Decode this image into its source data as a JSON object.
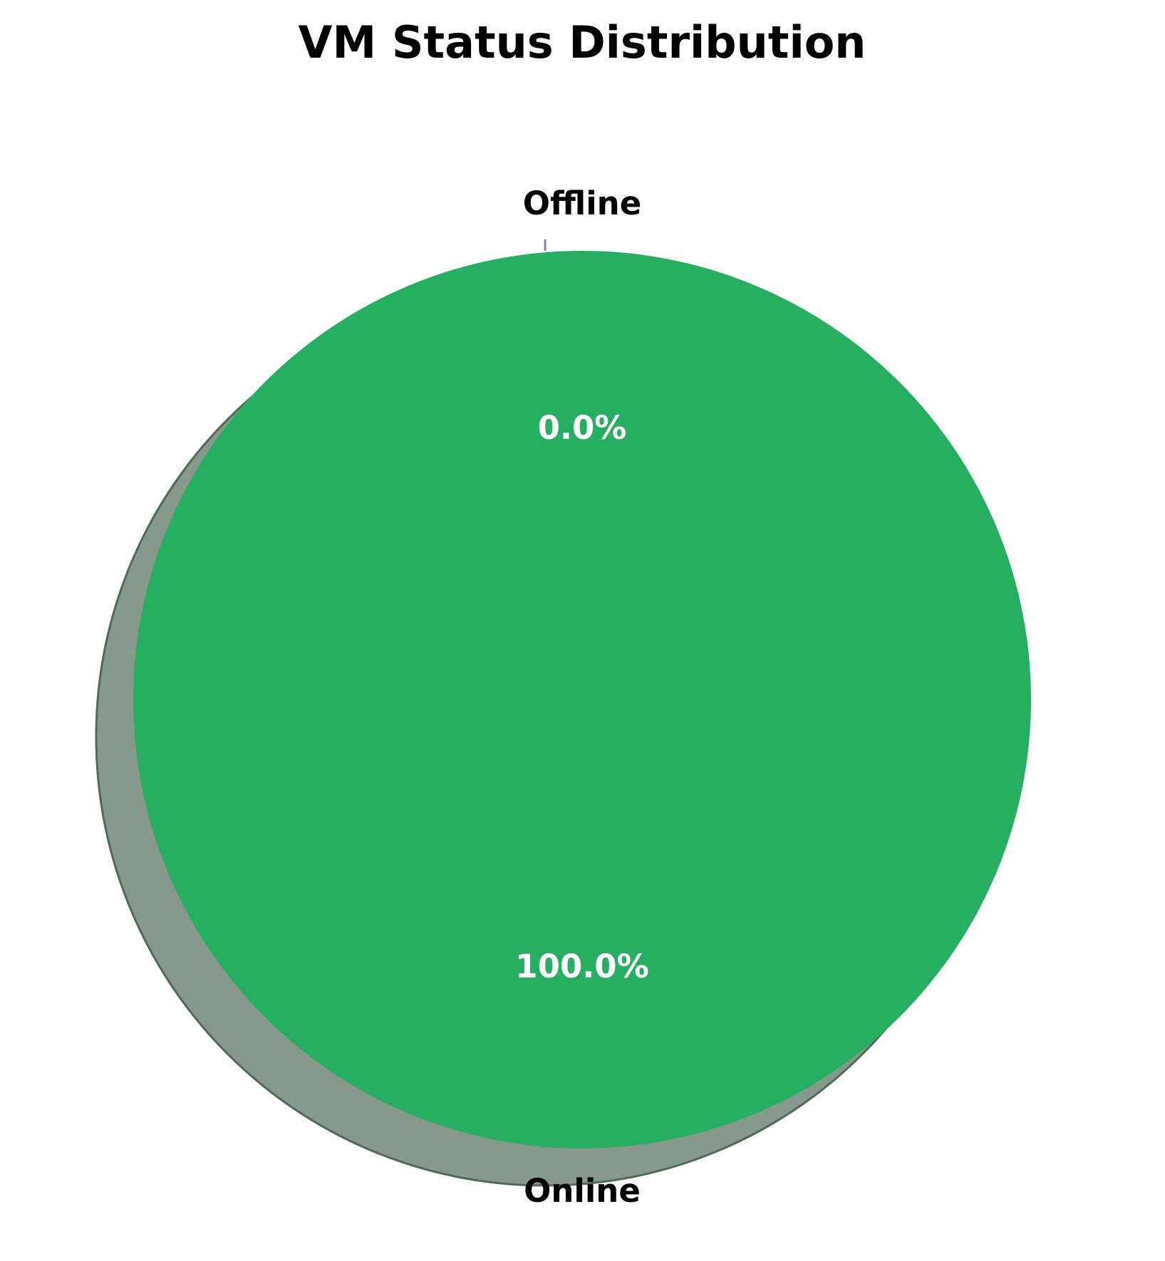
{
  "chart_data": {
    "type": "pie",
    "title": "VM Status Distribution",
    "categories": [
      "Online",
      "Offline"
    ],
    "values": [
      100.0,
      0.0
    ],
    "percent_labels": [
      "100.0%",
      "0.0%"
    ],
    "colors": [
      "#28ae62",
      "#888888"
    ],
    "shadow": true,
    "shadow_color": "#86998b",
    "start_angle_deg": 90
  }
}
